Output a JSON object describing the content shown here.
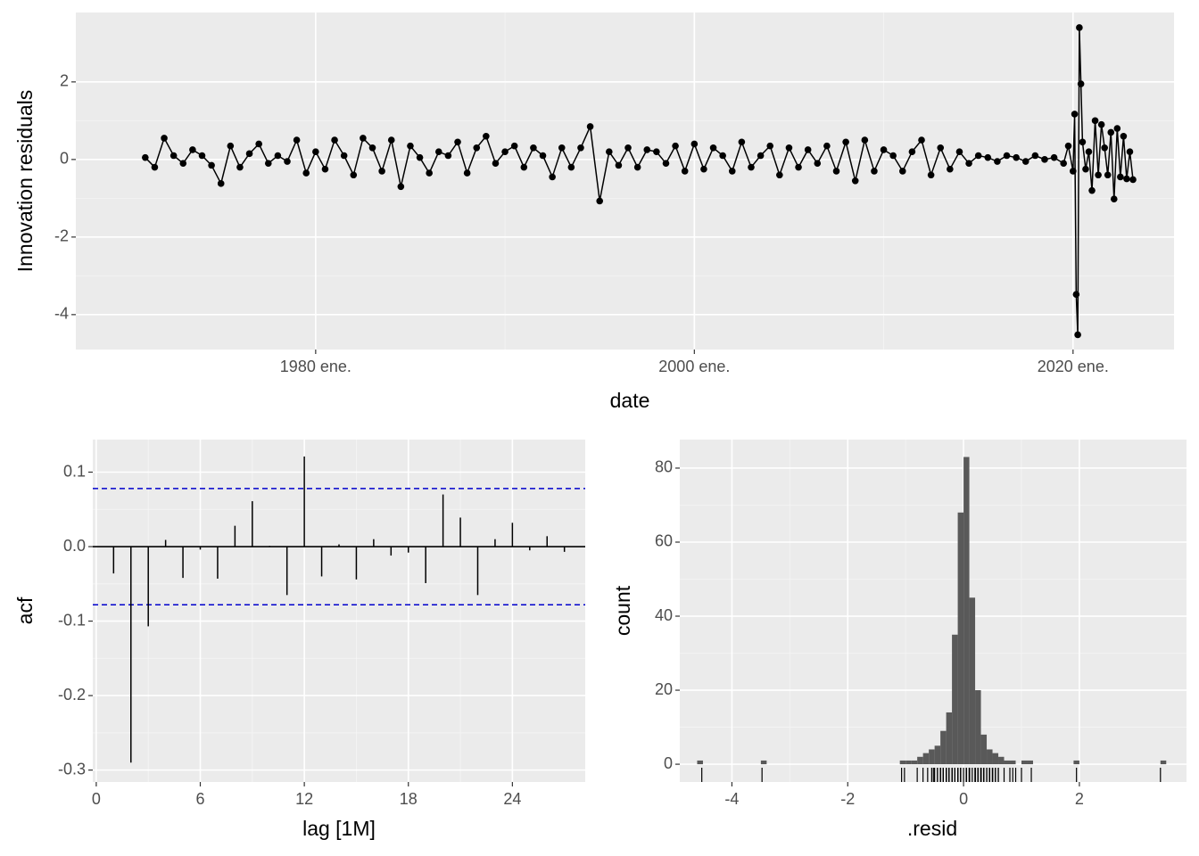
{
  "chart_data": [
    {
      "type": "line",
      "xlabel": "date",
      "ylabel": "Innovation residuals",
      "color": "#000000",
      "grid": true,
      "xlim": [
        "1967-05",
        "2025-05"
      ],
      "xticks": [
        {
          "value": "1980-01",
          "label": "1980 ene."
        },
        {
          "value": "2000-01",
          "label": "2000 ene."
        },
        {
          "value": "2020-01",
          "label": "2020 ene."
        }
      ],
      "ylim": [
        -4.9,
        3.79
      ],
      "yticks": [
        -4,
        -2,
        0,
        2
      ],
      "x": [
        "1971-01",
        "1971-07",
        "1972-01",
        "1972-07",
        "1973-01",
        "1973-07",
        "1974-01",
        "1974-07",
        "1975-01",
        "1975-07",
        "1976-01",
        "1976-07",
        "1977-01",
        "1977-07",
        "1978-01",
        "1978-07",
        "1979-01",
        "1979-07",
        "1980-01",
        "1980-07",
        "1981-01",
        "1981-07",
        "1982-01",
        "1982-07",
        "1983-01",
        "1983-07",
        "1984-01",
        "1984-07",
        "1985-01",
        "1985-07",
        "1986-01",
        "1986-07",
        "1987-01",
        "1987-07",
        "1988-01",
        "1988-07",
        "1989-01",
        "1989-07",
        "1990-01",
        "1990-07",
        "1991-01",
        "1991-07",
        "1992-01",
        "1992-07",
        "1993-01",
        "1993-07",
        "1994-01",
        "1994-07",
        "1995-01",
        "1995-07",
        "1996-01",
        "1996-07",
        "1997-01",
        "1997-07",
        "1998-01",
        "1998-07",
        "1999-01",
        "1999-07",
        "2000-01",
        "2000-07",
        "2001-01",
        "2001-07",
        "2002-01",
        "2002-07",
        "2003-01",
        "2003-07",
        "2004-01",
        "2004-07",
        "2005-01",
        "2005-07",
        "2006-01",
        "2006-07",
        "2007-01",
        "2007-07",
        "2008-01",
        "2008-07",
        "2009-01",
        "2009-07",
        "2010-01",
        "2010-07",
        "2011-01",
        "2011-07",
        "2012-01",
        "2012-07",
        "2013-01",
        "2013-07",
        "2014-01",
        "2014-07",
        "2015-01",
        "2015-07",
        "2016-01",
        "2016-07",
        "2017-01",
        "2017-07",
        "2018-01",
        "2018-07",
        "2019-01",
        "2019-07",
        "2019-10",
        "2020-01",
        "2020-02",
        "2020-03",
        "2020-04",
        "2020-05",
        "2020-06",
        "2020-07",
        "2020-09",
        "2020-11",
        "2021-01",
        "2021-03",
        "2021-05",
        "2021-07",
        "2021-09",
        "2021-11",
        "2022-01",
        "2022-03",
        "2022-05",
        "2022-07",
        "2022-09",
        "2022-11",
        "2023-01",
        "2023-03"
      ],
      "values": [
        0.05,
        -0.2,
        0.55,
        0.1,
        -0.1,
        0.25,
        0.1,
        -0.15,
        -0.62,
        0.35,
        -0.2,
        0.15,
        0.4,
        -0.1,
        0.1,
        -0.05,
        0.5,
        -0.35,
        0.2,
        -0.25,
        0.5,
        0.1,
        -0.4,
        0.55,
        0.3,
        -0.3,
        0.5,
        -0.7,
        0.35,
        0.05,
        -0.35,
        0.2,
        0.1,
        0.45,
        -0.35,
        0.3,
        0.6,
        -0.1,
        0.2,
        0.35,
        -0.2,
        0.3,
        0.1,
        -0.45,
        0.3,
        -0.2,
        0.3,
        0.85,
        -1.07,
        0.2,
        -0.15,
        0.3,
        -0.2,
        0.25,
        0.2,
        -0.1,
        0.35,
        -0.3,
        0.4,
        -0.25,
        0.3,
        0.1,
        -0.3,
        0.45,
        -0.2,
        0.1,
        0.35,
        -0.4,
        0.3,
        -0.2,
        0.25,
        -0.1,
        0.35,
        -0.3,
        0.45,
        -0.55,
        0.5,
        -0.3,
        0.25,
        0.1,
        -0.3,
        0.2,
        0.5,
        -0.4,
        0.3,
        -0.25,
        0.2,
        -0.1,
        0.1,
        0.05,
        -0.05,
        0.1,
        0.05,
        -0.05,
        0.1,
        0.0,
        0.05,
        -0.1,
        0.35,
        -0.3,
        1.17,
        -3.48,
        -4.52,
        3.4,
        1.95,
        0.45,
        -0.25,
        0.2,
        -0.8,
        1.0,
        -0.4,
        0.9,
        0.3,
        -0.4,
        0.7,
        -1.02,
        0.8,
        -0.45,
        0.6,
        -0.5,
        0.2,
        -0.52
      ]
    },
    {
      "type": "acf",
      "xlabel": "lag [1M]",
      "ylabel": "acf",
      "color": "#000000",
      "grid": true,
      "xlim": [
        -0.2,
        28.2
      ],
      "xticks": [
        0,
        6,
        12,
        18,
        24
      ],
      "ylim": [
        -0.316,
        0.1437
      ],
      "yticks": [
        -0.3,
        -0.2,
        -0.1,
        {
          "value": 0,
          "label": "0.0"
        },
        0.1
      ],
      "hlines": [
        0.078,
        -0.078
      ],
      "hline_color": "#0000cc",
      "x": [
        1,
        2,
        3,
        4,
        5,
        6,
        7,
        8,
        9,
        10,
        11,
        12,
        13,
        14,
        15,
        16,
        17,
        18,
        19,
        20,
        21,
        22,
        23,
        24,
        25,
        26,
        27
      ],
      "values": [
        -0.036,
        -0.29,
        -0.107,
        0.009,
        -0.042,
        -0.004,
        -0.043,
        0.028,
        0.061,
        0.001,
        -0.065,
        0.121,
        -0.04,
        0.003,
        -0.044,
        0.01,
        -0.012,
        -0.008,
        -0.049,
        0.07,
        0.039,
        -0.065,
        0.01,
        0.032,
        -0.005,
        0.014,
        -0.007
      ]
    },
    {
      "type": "histogram",
      "xlabel": ".resid",
      "ylabel": "count",
      "color": "#595959",
      "grid": true,
      "rug": true,
      "xlim": [
        -4.9,
        3.85
      ],
      "xticks": [
        -4,
        -2,
        0,
        2
      ],
      "ylim": [
        -4.8,
        87.7
      ],
      "yticks": [
        0,
        20,
        40,
        60,
        80
      ],
      "bins": [
        -4.6,
        -4.5,
        -4.4,
        -4.3,
        -4.2,
        -4.1,
        -4.0,
        -3.9,
        -3.8,
        -3.7,
        -3.6,
        -3.5,
        -3.4,
        -3.3,
        -3.2,
        -3.1,
        -3.0,
        -2.9,
        -2.8,
        -2.7,
        -2.6,
        -2.5,
        -2.4,
        -2.3,
        -2.2,
        -2.1,
        -2.0,
        -1.9,
        -1.8,
        -1.7,
        -1.6,
        -1.5,
        -1.4,
        -1.3,
        -1.2,
        -1.1,
        -1.0,
        -0.9,
        -0.8,
        -0.7,
        -0.6,
        -0.5,
        -0.4,
        -0.3,
        -0.2,
        -0.1,
        0,
        0.1,
        0.2,
        0.3,
        0.4,
        0.5,
        0.6,
        0.7,
        0.8,
        0.9,
        1.0,
        1.1,
        1.2,
        1.3,
        1.4,
        1.5,
        1.6,
        1.7,
        1.8,
        1.9,
        2.0,
        2.1,
        2.2,
        2.3,
        2.4,
        2.5,
        2.6,
        2.7,
        2.8,
        2.9,
        3.0,
        3.1,
        3.2,
        3.3,
        3.4,
        3.5
      ],
      "values": [
        1,
        0,
        0,
        0,
        0,
        0,
        0,
        0,
        0,
        0,
        0,
        1,
        0,
        0,
        0,
        0,
        0,
        0,
        0,
        0,
        0,
        0,
        0,
        0,
        0,
        0,
        0,
        0,
        0,
        0,
        0,
        0,
        0,
        0,
        0,
        1,
        1,
        1,
        2,
        3,
        4,
        5,
        9,
        14,
        35,
        68,
        83,
        45,
        20,
        8,
        4,
        3,
        2,
        1,
        1,
        0,
        1,
        1,
        0,
        0,
        0,
        0,
        0,
        0,
        0,
        1,
        0,
        0,
        0,
        0,
        0,
        0,
        0,
        0,
        0,
        0,
        0,
        0,
        0,
        0,
        1
      ]
    }
  ]
}
